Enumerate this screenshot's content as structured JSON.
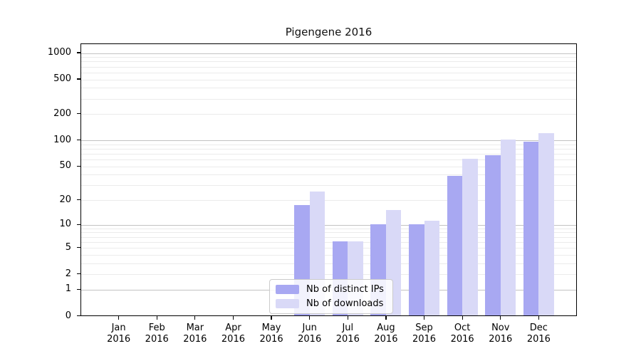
{
  "figure": {
    "title": "Pigengene 2016"
  },
  "chart_data": {
    "type": "bar",
    "title": "Pigengene 2016",
    "categories": [
      "Jan",
      "Feb",
      "Mar",
      "Apr",
      "May",
      "Jun",
      "Jul",
      "Aug",
      "Sep",
      "Oct",
      "Nov",
      "Dec"
    ],
    "year": "2016",
    "series": [
      {
        "name": "Nb of distinct IPs",
        "color": "#a8a8f2",
        "values": [
          0,
          0,
          0,
          0,
          0,
          17,
          6,
          10,
          10,
          38,
          66,
          95
        ]
      },
      {
        "name": "Nb of downloads",
        "color": "#d9d9f7",
        "values": [
          0,
          0,
          0,
          0,
          0,
          25,
          6,
          15,
          11,
          60,
          100,
          120
        ]
      }
    ],
    "y_axis": {
      "scale": "log1p",
      "ticks": [
        0,
        1,
        2,
        5,
        10,
        20,
        50,
        100,
        200,
        500,
        1000
      ],
      "range": [
        0,
        1000
      ],
      "major_gridlines_at": [
        1,
        10,
        100,
        1000
      ]
    },
    "x_axis": {
      "label_format": "month over year, two lines"
    },
    "grid": {
      "minor_color": "#ebebeb",
      "major_color": "#c2c2c2",
      "minor_multiples": [
        2,
        3,
        4,
        5,
        6,
        7,
        8,
        9
      ]
    },
    "legend": {
      "position": "lower-center",
      "background": "rgba(255,255,255,0.85)",
      "border_color": "#cbcbcb"
    }
  }
}
